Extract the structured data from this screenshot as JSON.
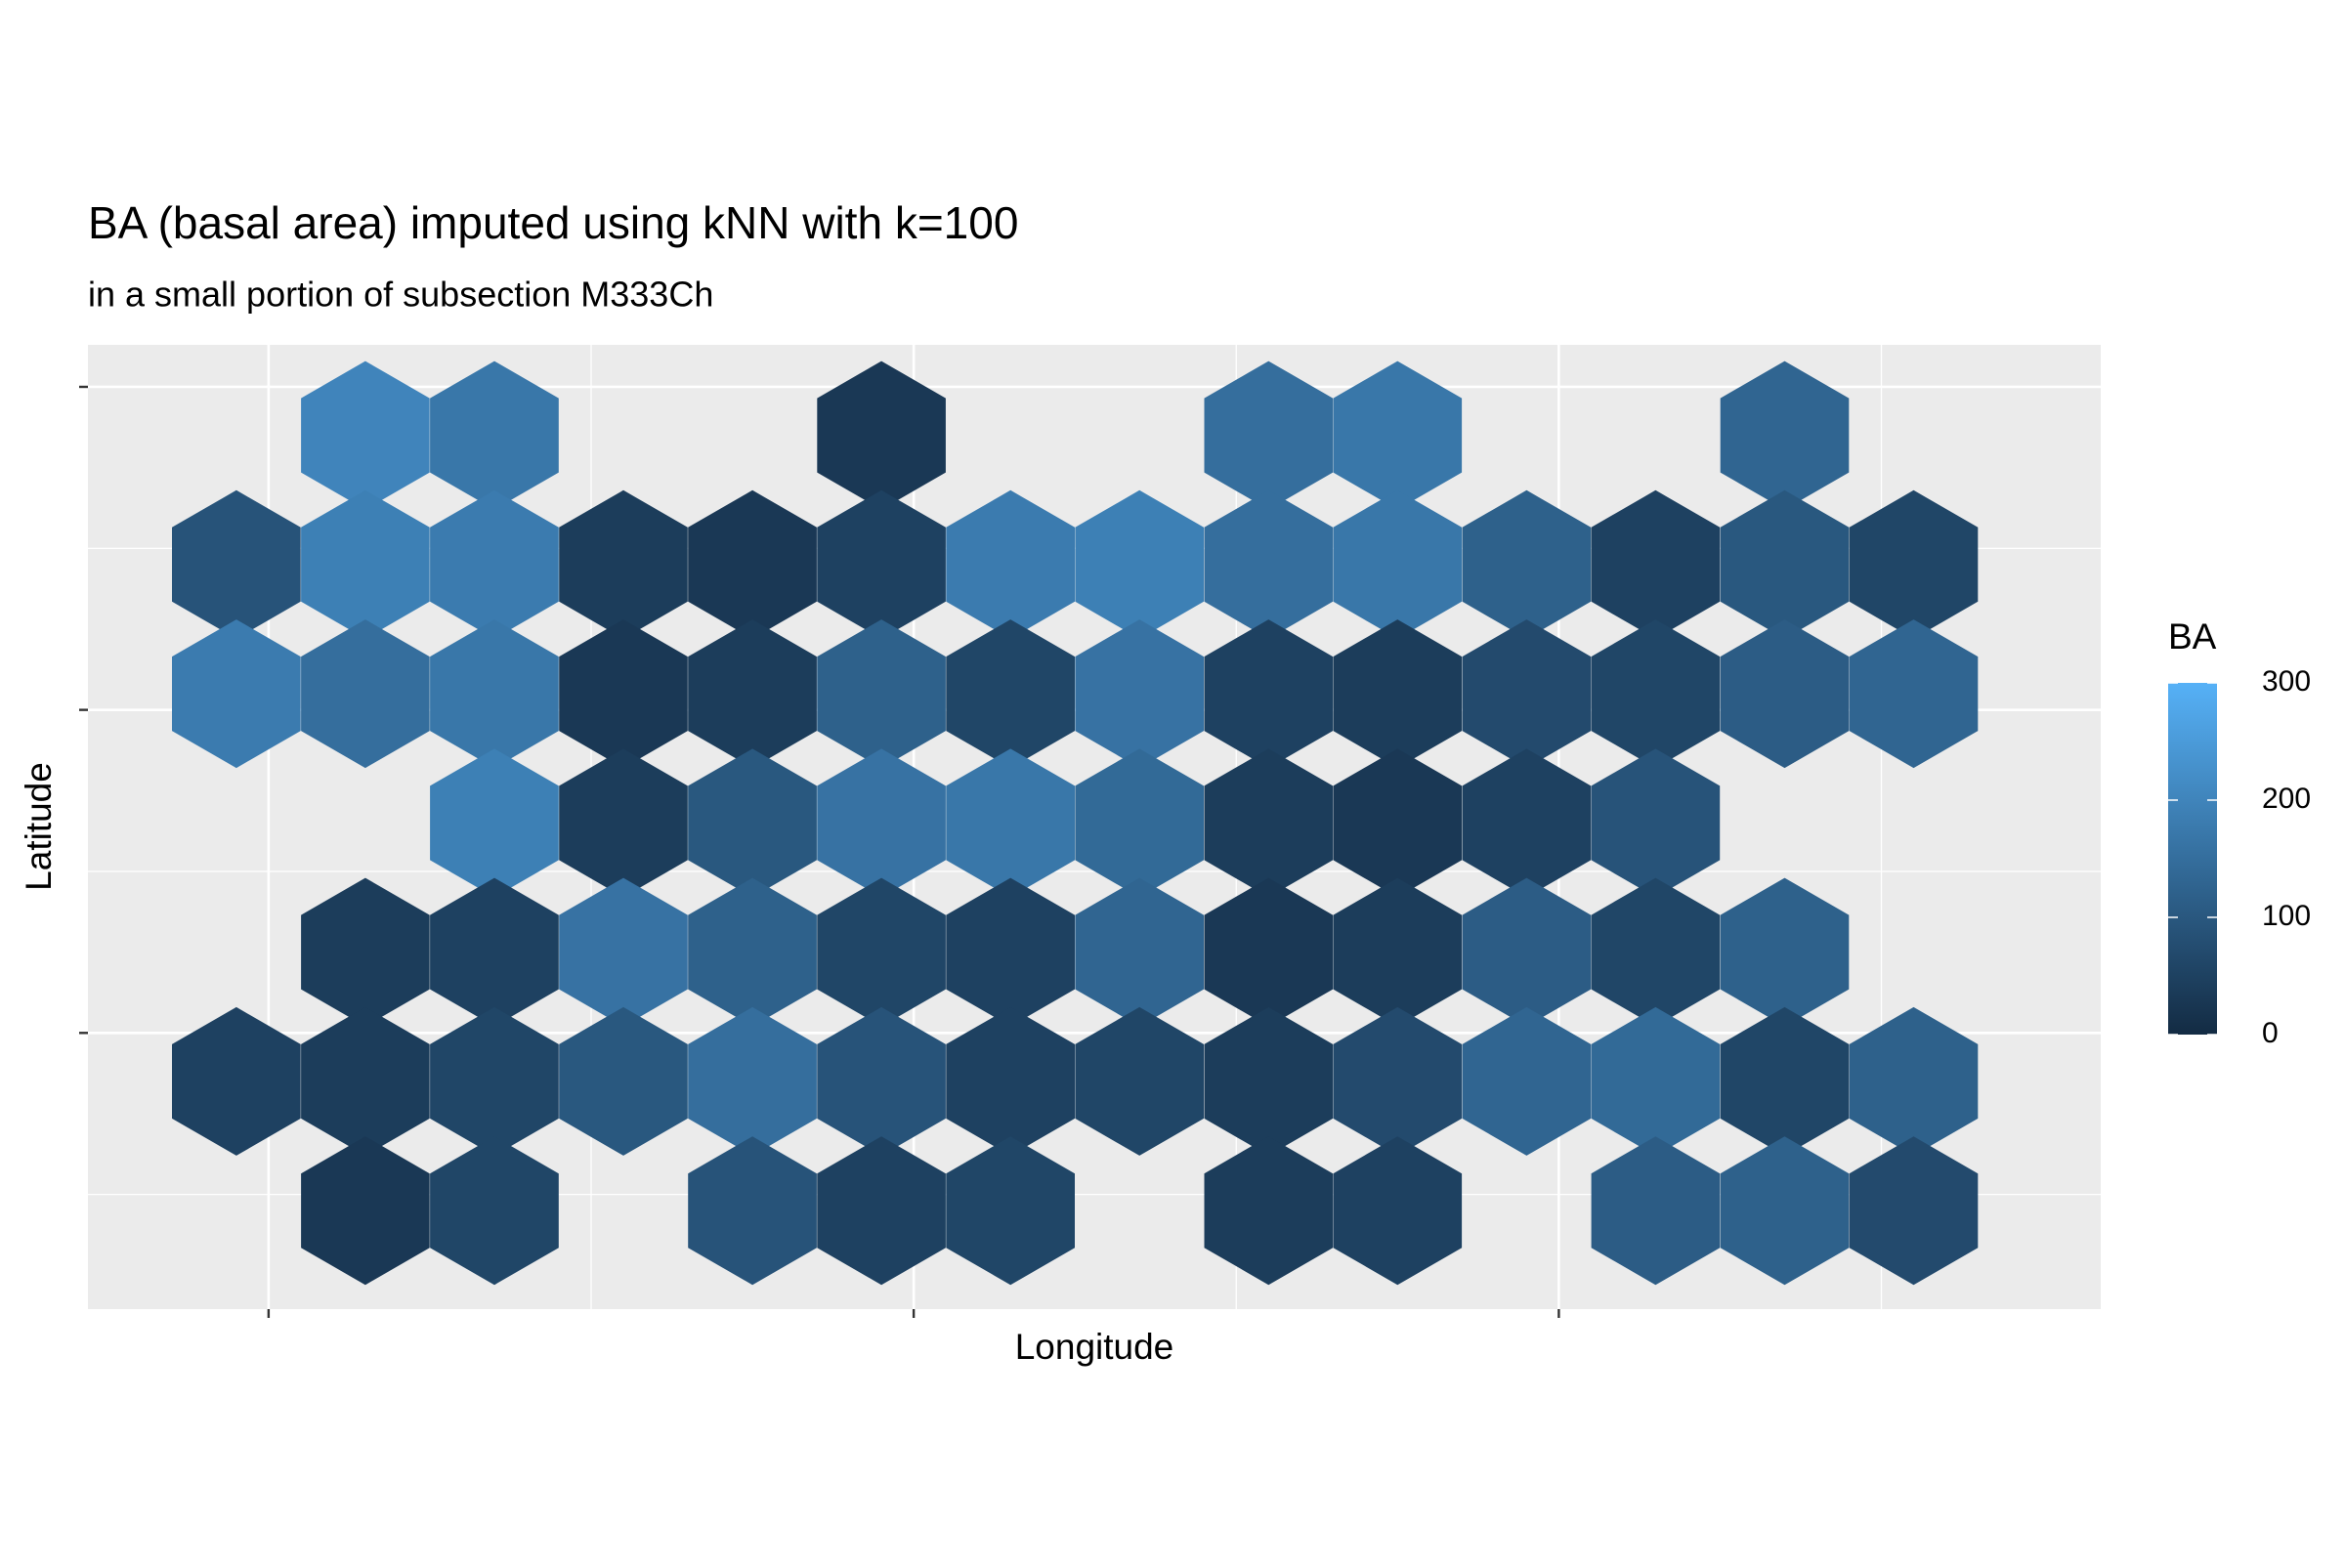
{
  "chart_data": {
    "type": "scatter",
    "title": "BA (basal area) imputed using kNN with k=100",
    "subtitle": "in a small portion of subsection M333Ch",
    "x_label": "Longitude",
    "y_label": "Latitude",
    "legend_title": "BA",
    "colorscale": [
      "#132B43",
      "#56B1F7"
    ],
    "clim": [
      0,
      300
    ],
    "cticks": [
      0,
      100,
      200,
      300
    ],
    "xlim": [
      -0.56,
      5.68
    ],
    "ylim": [
      -1.71,
      4.26
    ],
    "xticks": [
      0,
      2,
      4
    ],
    "xminor": [
      1,
      3,
      5
    ],
    "yticks": [
      0,
      2,
      4
    ],
    "yminor": [
      -1,
      1,
      3
    ],
    "grid": true,
    "x": [
      0.3,
      0.7,
      1.9,
      3.1,
      3.5,
      4.7,
      -0.1,
      0.3,
      0.7,
      1.1,
      1.5,
      1.9,
      2.3,
      2.7,
      3.1,
      3.5,
      3.9,
      4.3,
      4.7,
      5.1,
      -0.1,
      0.3,
      0.7,
      1.1,
      1.5,
      1.9,
      2.3,
      2.7,
      3.1,
      3.5,
      3.9,
      4.3,
      4.7,
      5.1,
      0.7,
      1.1,
      1.5,
      1.9,
      2.3,
      2.7,
      3.1,
      3.5,
      3.9,
      4.3,
      0.3,
      0.7,
      1.1,
      1.5,
      1.9,
      2.3,
      2.7,
      3.1,
      3.5,
      3.9,
      4.3,
      4.7,
      -0.1,
      0.3,
      0.7,
      1.1,
      1.5,
      1.9,
      2.3,
      2.7,
      3.1,
      3.5,
      3.9,
      4.3,
      4.7,
      5.1,
      0.3,
      0.7,
      1.5,
      1.9,
      2.3,
      3.1,
      3.5,
      4.3,
      4.7,
      5.1
    ],
    "y": [
      3.7,
      3.7,
      3.7,
      3.7,
      3.7,
      3.7,
      2.9,
      2.9,
      2.9,
      2.9,
      2.9,
      2.9,
      2.9,
      2.9,
      2.9,
      2.9,
      2.9,
      2.9,
      2.9,
      2.9,
      2.1,
      2.1,
      2.1,
      2.1,
      2.1,
      2.1,
      2.1,
      2.1,
      2.1,
      2.1,
      2.1,
      2.1,
      2.1,
      2.1,
      1.3,
      1.3,
      1.3,
      1.3,
      1.3,
      1.3,
      1.3,
      1.3,
      1.3,
      1.3,
      0.5,
      0.5,
      0.5,
      0.5,
      0.5,
      0.5,
      0.5,
      0.5,
      0.5,
      0.5,
      0.5,
      0.5,
      -0.3,
      -0.3,
      -0.3,
      -0.3,
      -0.3,
      -0.3,
      -0.3,
      -0.3,
      -0.3,
      -0.3,
      -0.3,
      -0.3,
      -0.3,
      -0.3,
      -1.1,
      -1.1,
      -1.1,
      -1.1,
      -1.1,
      -1.1,
      -1.1,
      -1.1,
      -1.1,
      -1.1
    ],
    "values": [
      200,
      170,
      30,
      150,
      170,
      130,
      90,
      190,
      180,
      40,
      30,
      50,
      180,
      190,
      150,
      170,
      120,
      50,
      100,
      60,
      180,
      150,
      170,
      30,
      40,
      120,
      60,
      160,
      50,
      40,
      70,
      60,
      110,
      130,
      190,
      40,
      100,
      160,
      170,
      140,
      40,
      30,
      50,
      90,
      40,
      50,
      160,
      120,
      60,
      50,
      130,
      30,
      40,
      110,
      60,
      120,
      50,
      40,
      60,
      100,
      150,
      90,
      50,
      60,
      40,
      70,
      130,
      140,
      60,
      120,
      30,
      60,
      90,
      50,
      60,
      40,
      50,
      110,
      120,
      70
    ]
  }
}
